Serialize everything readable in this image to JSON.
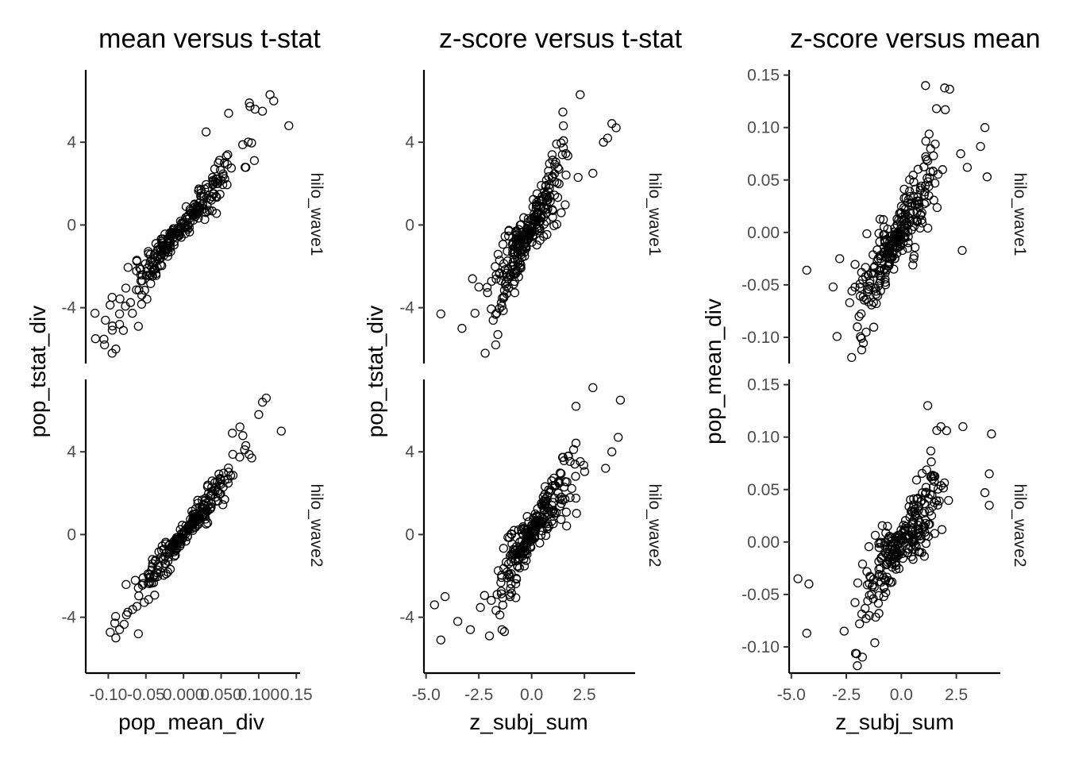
{
  "figure": {
    "type": "scatter-faceted",
    "facets": [
      "hilo_wave1",
      "hilo_wave2"
    ]
  },
  "chart_data": [
    {
      "type": "scatter",
      "title": "mean versus t-stat",
      "xlabel": "pop_mean_div",
      "ylabel": "pop_tstat_div",
      "xlim": [
        -0.13,
        0.155
      ],
      "ylim": [
        -6.7,
        7.5
      ],
      "x_ticks": [
        -0.1,
        -0.05,
        0.0,
        0.05,
        0.1,
        0.15
      ],
      "x_tick_labels": [
        "-0.10",
        "-0.05",
        "0.000",
        "0.050",
        "0.100",
        "0.15"
      ],
      "y_ticks": [
        -4,
        0,
        4
      ],
      "y_tick_labels": [
        "-4",
        "0",
        "4"
      ],
      "facets": [
        {
          "label": "hilo_wave1",
          "slope": 45,
          "x_center": -0.005,
          "x_spread": 0.04,
          "noise": 0.55,
          "n": 260,
          "seed": 11,
          "points": [
            [
              -0.117,
              -5.5
            ],
            [
              -0.105,
              -5.8
            ],
            [
              -0.095,
              -6.2
            ],
            [
              -0.09,
              -6.0
            ],
            [
              -0.08,
              -5.1
            ],
            [
              -0.095,
              -3.5
            ],
            [
              -0.085,
              -4.3
            ],
            [
              -0.06,
              -4.9
            ],
            [
              0.14,
              4.8
            ],
            [
              0.12,
              6.0
            ],
            [
              0.115,
              6.3
            ],
            [
              0.105,
              5.5
            ],
            [
              0.095,
              5.6
            ],
            [
              0.06,
              5.4
            ],
            [
              0.03,
              4.5
            ]
          ]
        },
        {
          "label": "hilo_wave2",
          "slope": 46,
          "x_center": 0.0,
          "x_spread": 0.036,
          "noise": 0.45,
          "n": 240,
          "seed": 23,
          "points": [
            [
              -0.09,
              -5.0
            ],
            [
              -0.085,
              -4.6
            ],
            [
              -0.06,
              -4.8
            ],
            [
              0.13,
              5.0
            ],
            [
              0.11,
              6.6
            ],
            [
              0.1,
              5.8
            ],
            [
              0.105,
              6.4
            ],
            [
              0.075,
              5.2
            ],
            [
              0.065,
              4.9
            ]
          ]
        }
      ]
    },
    {
      "type": "scatter",
      "title": "z-score versus t-stat",
      "xlabel": "z_subj_sum",
      "ylabel": "pop_tstat_div",
      "xlim": [
        -5.1,
        4.9
      ],
      "ylim": [
        -6.7,
        7.5
      ],
      "x_ticks": [
        -5.0,
        -2.5,
        0.0,
        2.5
      ],
      "x_tick_labels": [
        "-5.0",
        "-2.5",
        "0.0",
        "2.5"
      ],
      "y_ticks": [
        -4,
        0,
        4
      ],
      "y_tick_labels": [
        "-4",
        "0",
        "4"
      ],
      "facets": [
        {
          "label": "hilo_wave1",
          "slope": 1.9,
          "x_center": -0.2,
          "x_spread": 0.8,
          "noise": 0.9,
          "n": 260,
          "seed": 37,
          "points": [
            [
              -4.3,
              -4.3
            ],
            [
              -3.3,
              -5.0
            ],
            [
              -2.2,
              -6.2
            ],
            [
              -1.7,
              -5.8
            ],
            [
              -1.6,
              -5.3
            ],
            [
              -2.8,
              -2.6
            ],
            [
              -2.5,
              -3.0
            ],
            [
              2.3,
              6.3
            ],
            [
              3.8,
              4.9
            ],
            [
              4.0,
              4.7
            ],
            [
              3.6,
              4.2
            ],
            [
              3.4,
              4.0
            ],
            [
              2.9,
              2.5
            ],
            [
              2.2,
              2.3
            ]
          ]
        },
        {
          "label": "hilo_wave2",
          "slope": 1.65,
          "x_center": 0.1,
          "x_spread": 1.0,
          "noise": 0.85,
          "n": 250,
          "seed": 51,
          "points": [
            [
              -4.6,
              -3.4
            ],
            [
              -4.3,
              -5.1
            ],
            [
              -4.1,
              -3.0
            ],
            [
              -3.5,
              -4.2
            ],
            [
              -2.9,
              -4.6
            ],
            [
              -2.0,
              -4.9
            ],
            [
              -1.4,
              -4.6
            ],
            [
              2.9,
              7.1
            ],
            [
              4.2,
              6.5
            ],
            [
              4.1,
              4.7
            ],
            [
              3.8,
              4.0
            ],
            [
              3.5,
              3.2
            ],
            [
              2.1,
              6.2
            ]
          ]
        }
      ]
    },
    {
      "type": "scatter",
      "title": "z-score versus mean",
      "xlabel": "z_subj_sum",
      "ylabel": "pop_mean_div",
      "xlim": [
        -5.1,
        4.5
      ],
      "ylim": [
        -0.125,
        0.155
      ],
      "x_ticks": [
        -5.0,
        -2.5,
        0.0,
        2.5
      ],
      "x_tick_labels": [
        "-5.0",
        "-2.5",
        "0.0",
        "2.5"
      ],
      "y_ticks": [
        -0.1,
        -0.05,
        0.0,
        0.05,
        0.1,
        0.15
      ],
      "y_tick_labels": [
        "-0.10",
        "-0.05",
        "0.00",
        "0.05",
        "0.10",
        "0.15"
      ],
      "facets": [
        {
          "label": "hilo_wave1",
          "slope": 0.036,
          "x_center": -0.3,
          "x_spread": 0.9,
          "noise": 0.022,
          "n": 260,
          "seed": 67,
          "points": [
            [
              -4.3,
              -0.036
            ],
            [
              -3.1,
              -0.052
            ],
            [
              -2.8,
              -0.025
            ],
            [
              -1.8,
              -0.112
            ],
            [
              -1.6,
              -0.095
            ],
            [
              -2.0,
              -0.09
            ],
            [
              1.1,
              0.14
            ],
            [
              1.6,
              0.118
            ],
            [
              2.0,
              0.117
            ],
            [
              3.8,
              0.1
            ],
            [
              3.6,
              0.082
            ],
            [
              3.9,
              0.053
            ],
            [
              3.0,
              0.062
            ],
            [
              2.7,
              0.075
            ]
          ]
        },
        {
          "label": "hilo_wave2",
          "slope": 0.03,
          "x_center": 0.0,
          "x_spread": 1.0,
          "noise": 0.022,
          "n": 250,
          "seed": 79,
          "points": [
            [
              -4.3,
              -0.087
            ],
            [
              -4.7,
              -0.035
            ],
            [
              -4.2,
              -0.04
            ],
            [
              -2.6,
              -0.085
            ],
            [
              -1.9,
              -0.078
            ],
            [
              -1.6,
              -0.073
            ],
            [
              1.2,
              0.13
            ],
            [
              2.8,
              0.11
            ],
            [
              4.1,
              0.103
            ],
            [
              1.8,
              0.11
            ],
            [
              3.8,
              0.047
            ],
            [
              4.0,
              0.065
            ],
            [
              4.0,
              0.035
            ]
          ]
        }
      ]
    }
  ]
}
